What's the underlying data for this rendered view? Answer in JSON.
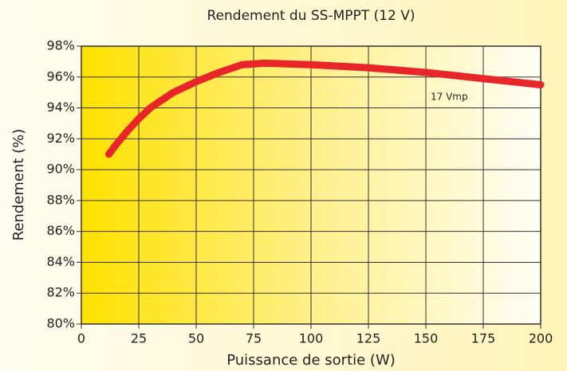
{
  "chart_data": {
    "type": "line",
    "title": "Rendement du SS-MPPT (12 V)",
    "xlabel": "Puissance de sortie (W)",
    "ylabel": "Rendement (%)",
    "x": [
      12,
      15,
      20,
      25,
      30,
      40,
      50,
      60,
      70,
      80,
      100,
      125,
      150,
      175,
      200
    ],
    "series": [
      {
        "name": "17 Vmp",
        "color": "#e8262a",
        "values": [
          91.0,
          91.6,
          92.5,
          93.3,
          94.0,
          95.0,
          95.7,
          96.3,
          96.8,
          96.9,
          96.8,
          96.6,
          96.3,
          95.9,
          95.5
        ]
      }
    ],
    "xlim": [
      0,
      200
    ],
    "xticks": [
      0,
      25,
      50,
      75,
      100,
      125,
      150,
      175,
      200
    ],
    "ylim": [
      80,
      98
    ],
    "yticks": [
      {
        "value": 80,
        "label": "80%"
      },
      {
        "value": 82,
        "label": "82%"
      },
      {
        "value": 84,
        "label": "84%"
      },
      {
        "value": 86,
        "label": "86%"
      },
      {
        "value": 88,
        "label": "88%"
      },
      {
        "value": 90,
        "label": "90%"
      },
      {
        "value": 92,
        "label": "92%"
      },
      {
        "value": 94,
        "label": "94%"
      },
      {
        "value": 96,
        "label": "96%"
      },
      {
        "value": 98,
        "label": "98%"
      }
    ],
    "grid": true
  }
}
